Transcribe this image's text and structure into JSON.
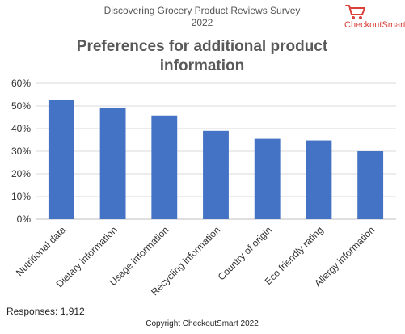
{
  "header": {
    "survey_title": "Discovering Grocery Product Reviews Survey 2022",
    "logo_text": "CheckoutSmart"
  },
  "footer": {
    "responses": "Responses: 1,912",
    "copyright": "Copyright CheckoutSmart 2022"
  },
  "colors": {
    "bar": "#4472c4",
    "logo": "#d9413a",
    "grid": "#d9d9d9"
  },
  "chart_data": {
    "type": "bar",
    "title": "Preferences for additional product information",
    "xlabel": "",
    "ylabel": "",
    "categories": [
      "Nutritional data",
      "Dietary information",
      "Usage information",
      "Recycling information",
      "Country of origin",
      "Eco friendly rating",
      "Allergy information"
    ],
    "values": [
      52.5,
      49.3,
      45.8,
      39.0,
      35.5,
      34.8,
      30.0
    ],
    "ylim": [
      0,
      60
    ],
    "yticks": [
      "0%",
      "10%",
      "20%",
      "30%",
      "40%",
      "50%",
      "60%"
    ],
    "grid": true,
    "legend": "none"
  }
}
